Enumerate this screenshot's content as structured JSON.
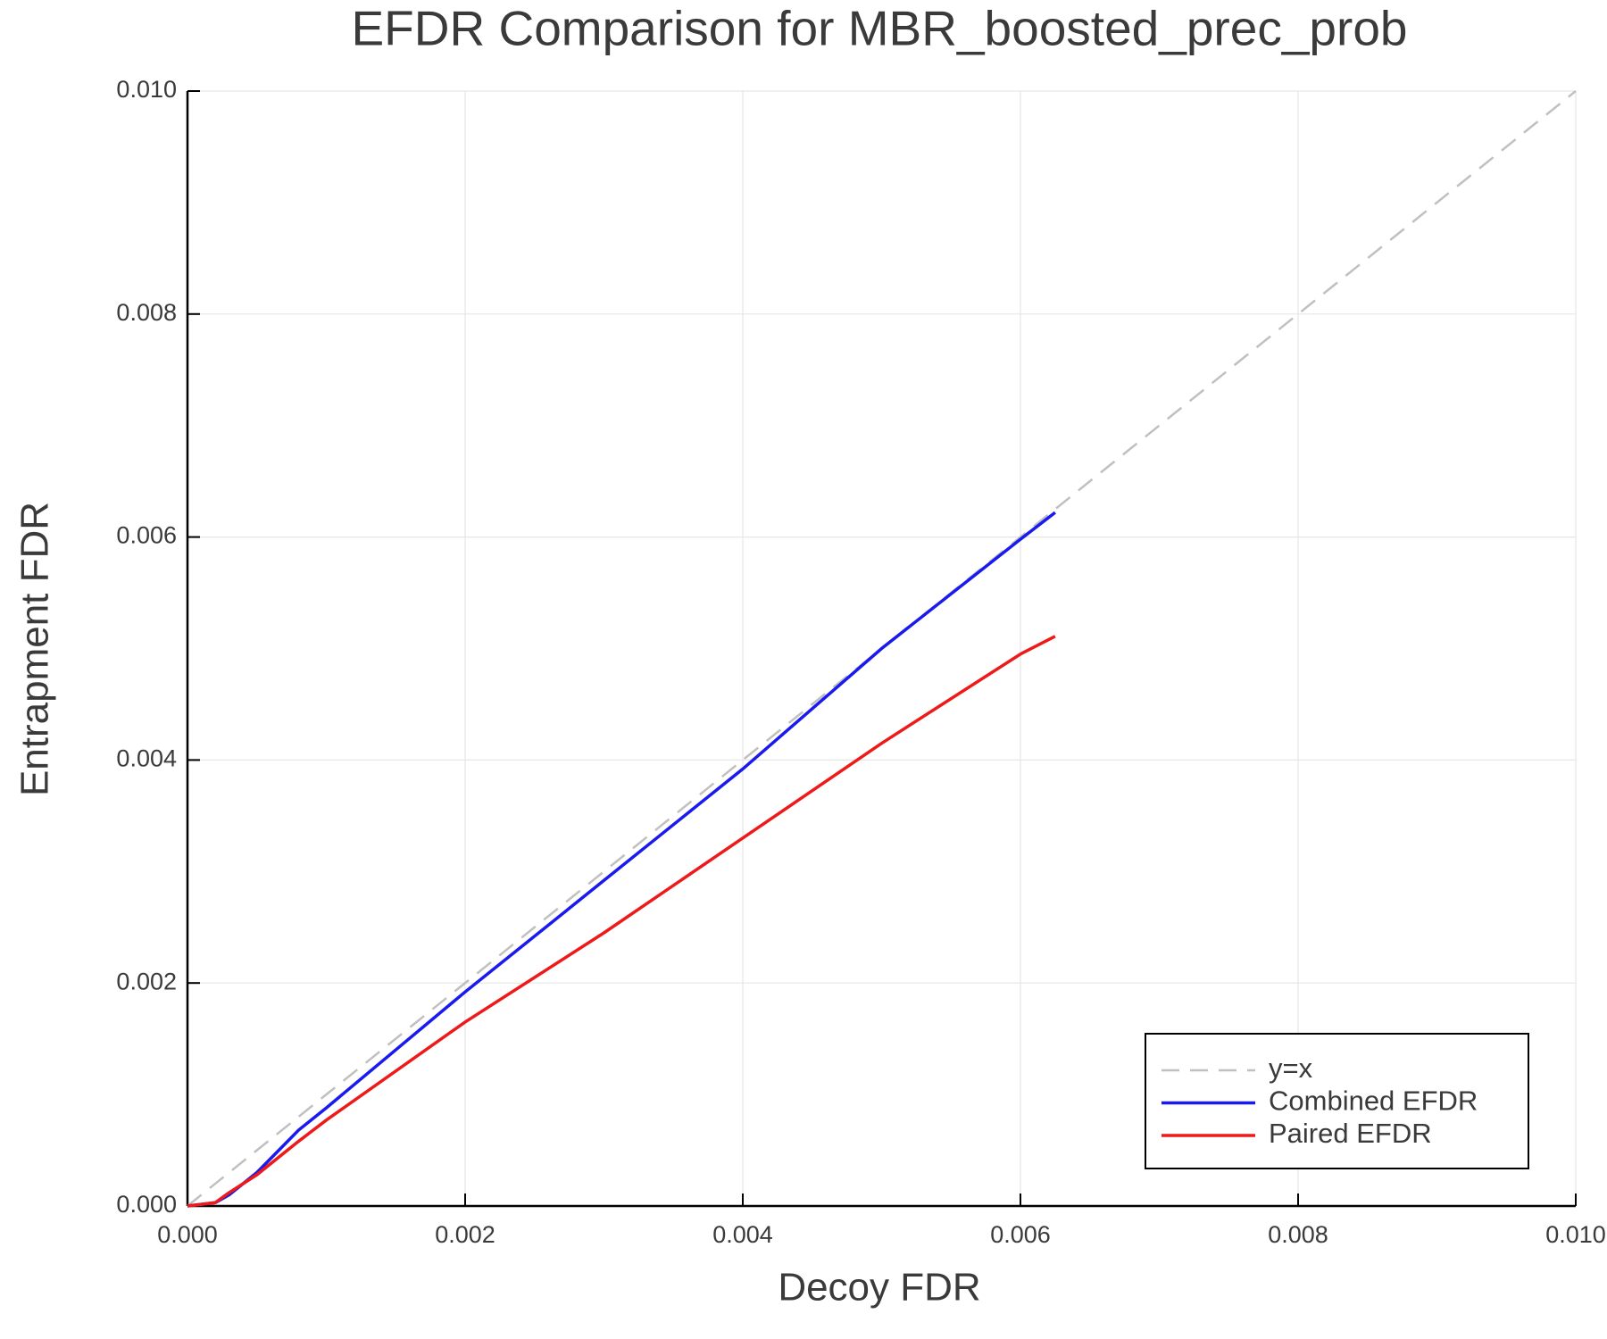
{
  "chart_data": {
    "type": "line",
    "title": "EFDR Comparison for MBR_boosted_prec_prob",
    "x_label": "Decoy FDR",
    "y_label": "Entrapment FDR",
    "xlim": [
      0,
      0.01
    ],
    "ylim": [
      0,
      0.01
    ],
    "xticks": [
      {
        "value": 0,
        "label": "0.000"
      },
      0.002,
      0.004,
      0.006,
      0.008,
      {
        "value": 0.01,
        "label": "0.010"
      }
    ],
    "yticks": [
      {
        "value": 0,
        "label": "0.000"
      },
      0.002,
      0.004,
      0.006,
      0.008,
      {
        "value": 0.01,
        "label": "0.010"
      }
    ],
    "grid": true,
    "legend": "lower right",
    "series": [
      {
        "name": "y=x",
        "color": "#c0c0c0",
        "dashed": true,
        "x": [
          0,
          0.01
        ],
        "values": [
          0,
          0.01
        ]
      },
      {
        "name": "Combined EFDR",
        "color": "#1a1aee",
        "x": [
          0,
          0.0002,
          0.0003,
          0.0005,
          0.0008,
          0.001,
          0.002,
          0.003,
          0.004,
          0.005,
          0.006,
          0.00625
        ],
        "values": [
          0,
          3e-05,
          0.0001,
          0.0003,
          0.00068,
          0.00088,
          0.00192,
          0.00292,
          0.00392,
          0.005,
          0.00598,
          0.00622
        ]
      },
      {
        "name": "Paired EFDR",
        "color": "#ee1a1a",
        "x": [
          0,
          0.0002,
          0.0003,
          0.0005,
          0.0008,
          0.001,
          0.002,
          0.003,
          0.004,
          0.005,
          0.006,
          0.00625
        ],
        "values": [
          0,
          3e-05,
          0.00012,
          0.00028,
          0.00058,
          0.00077,
          0.00165,
          0.00245,
          0.0033,
          0.00415,
          0.00495,
          0.00511
        ]
      }
    ]
  }
}
